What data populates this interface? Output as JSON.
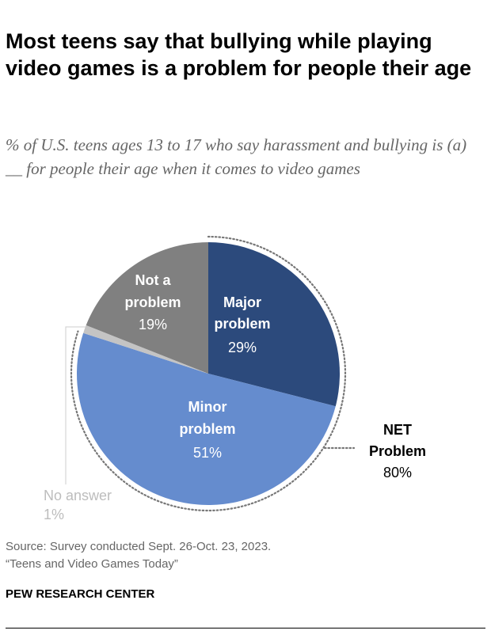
{
  "title": "Most teens say that bullying while playing video games is a problem for people their age",
  "subtitle": "% of U.S. teens ages 13 to 17 who say harassment and bullying is (a) __ for people their age when it comes to video games",
  "source_lines": [
    "Source: Survey conducted Sept. 26-Oct. 23, 2023.",
    "“Teens and Video Games Today”"
  ],
  "brand": "PEW RESEARCH CENTER",
  "chart_data": {
    "type": "pie",
    "start": "top, clockwise",
    "slices": [
      {
        "label": [
          "Major",
          "problem"
        ],
        "value": 29,
        "value_label": "29%",
        "color": "#2c4a7c",
        "text_color": "#ffffff"
      },
      {
        "label": [
          "Minor",
          "problem"
        ],
        "value": 51,
        "value_label": "51%",
        "color": "#658cce",
        "text_color": "#ffffff"
      },
      {
        "label": [
          "No answer"
        ],
        "value": 1,
        "value_label": "1%",
        "color": "#c4c4c4",
        "text_color": "#bdbdbd"
      },
      {
        "label": [
          "Not a",
          "problem"
        ],
        "value": 19,
        "value_label": "19%",
        "color": "#808080",
        "text_color": "#ffffff"
      }
    ],
    "net": {
      "label": [
        "NET",
        "Problem"
      ],
      "value": 80,
      "value_label": "80%",
      "includes": [
        "Major problem",
        "Minor problem"
      ]
    }
  }
}
